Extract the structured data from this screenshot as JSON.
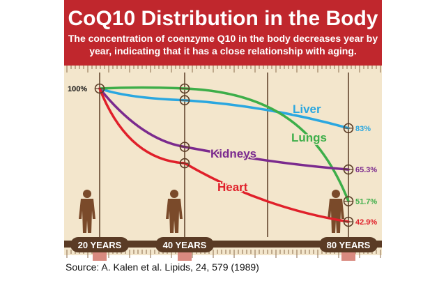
{
  "header": {
    "title": "CoQ10 Distribution in the Body",
    "subtitle_line1": "The concentration of coenzyme Q10 in the body decreases year by",
    "subtitle_line2": "year, indicating that it has a close relationship with aging."
  },
  "source": "Source: A. Kalen et al. Lipids, 24, 579 (1989)",
  "colors": {
    "banner": "#c0272d",
    "background": "#f3e6cc",
    "liver": "#2aa7e0",
    "lungs": "#3dae49",
    "kidneys": "#7b2a8e",
    "heart": "#e0202a",
    "axis": "#5a3b25",
    "figure": "#7a4a2a"
  },
  "chart_data": {
    "type": "line",
    "title": "CoQ10 Distribution in the Body",
    "x": [
      20,
      40,
      80
    ],
    "x_tick_labels": [
      "20 YEARS",
      "40 YEARS",
      "80 YEARS"
    ],
    "start_label": "100%",
    "xlim": [
      20,
      80
    ],
    "ylim": [
      35,
      100
    ],
    "series": [
      {
        "name": "Liver",
        "color": "#2aa7e0",
        "values": [
          100,
          95,
          83
        ],
        "end_label": "83%"
      },
      {
        "name": "Lungs",
        "color": "#3dae49",
        "values": [
          100,
          100,
          51.7
        ],
        "end_label": "51.7%"
      },
      {
        "name": "Kidneys",
        "color": "#7b2a8e",
        "values": [
          100,
          75,
          65.3
        ],
        "end_label": "65.3%"
      },
      {
        "name": "Heart",
        "color": "#e0202a",
        "values": [
          100,
          68,
          42.9
        ],
        "end_label": "42.9%"
      }
    ]
  }
}
